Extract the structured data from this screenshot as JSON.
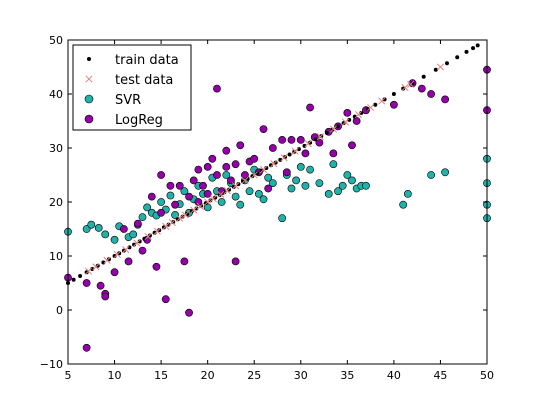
{
  "chart_data": {
    "type": "scatter",
    "title": "",
    "xlabel": "",
    "ylabel": "",
    "xlim": [
      5,
      50
    ],
    "ylim": [
      -10,
      50
    ],
    "xticks": [
      "5",
      "10",
      "15",
      "20",
      "25",
      "30",
      "35",
      "40",
      "45",
      "50"
    ],
    "yticks": [
      "−10",
      "0",
      "10",
      "20",
      "30",
      "40",
      "50"
    ],
    "grid": false,
    "legend_position": "top-left",
    "series": [
      {
        "name": "train data",
        "marker": "dot",
        "color": "#000000",
        "points": [
          [
            5.0,
            5.0
          ],
          [
            5.6,
            5.6
          ],
          [
            6.3,
            6.3
          ],
          [
            7.0,
            7.0
          ],
          [
            7.6,
            7.6
          ],
          [
            8.2,
            8.2
          ],
          [
            8.8,
            8.8
          ],
          [
            9.4,
            9.4
          ],
          [
            10.0,
            10.0
          ],
          [
            10.5,
            10.5
          ],
          [
            11.0,
            11.0
          ],
          [
            11.6,
            11.6
          ],
          [
            12.1,
            12.1
          ],
          [
            12.7,
            12.7
          ],
          [
            13.2,
            13.2
          ],
          [
            13.8,
            13.8
          ],
          [
            14.3,
            14.3
          ],
          [
            14.8,
            14.8
          ],
          [
            15.3,
            15.3
          ],
          [
            15.8,
            15.8
          ],
          [
            16.3,
            16.3
          ],
          [
            16.8,
            16.8
          ],
          [
            17.3,
            17.3
          ],
          [
            17.8,
            17.8
          ],
          [
            18.3,
            18.3
          ],
          [
            18.8,
            18.8
          ],
          [
            19.3,
            19.3
          ],
          [
            19.8,
            19.8
          ],
          [
            20.3,
            20.3
          ],
          [
            20.8,
            20.8
          ],
          [
            21.3,
            21.3
          ],
          [
            21.8,
            21.8
          ],
          [
            22.3,
            22.3
          ],
          [
            22.8,
            22.8
          ],
          [
            23.3,
            23.3
          ],
          [
            23.8,
            23.8
          ],
          [
            24.3,
            24.3
          ],
          [
            24.8,
            24.8
          ],
          [
            25.3,
            25.3
          ],
          [
            25.8,
            25.8
          ],
          [
            26.3,
            26.3
          ],
          [
            26.8,
            26.8
          ],
          [
            27.3,
            27.3
          ],
          [
            27.8,
            27.8
          ],
          [
            28.3,
            28.3
          ],
          [
            28.8,
            28.8
          ],
          [
            29.3,
            29.3
          ],
          [
            29.8,
            29.8
          ],
          [
            30.4,
            30.4
          ],
          [
            31.0,
            31.0
          ],
          [
            31.6,
            31.6
          ],
          [
            32.2,
            32.2
          ],
          [
            32.8,
            32.8
          ],
          [
            33.4,
            33.4
          ],
          [
            34.0,
            34.0
          ],
          [
            34.6,
            34.6
          ],
          [
            35.2,
            35.2
          ],
          [
            35.8,
            35.8
          ],
          [
            36.5,
            36.5
          ],
          [
            37.2,
            37.2
          ],
          [
            38.0,
            38.0
          ],
          [
            39.0,
            39.0
          ],
          [
            40.0,
            40.0
          ],
          [
            41.0,
            41.0
          ],
          [
            42.0,
            42.0
          ],
          [
            43.2,
            43.2
          ],
          [
            44.5,
            44.5
          ],
          [
            45.7,
            45.7
          ],
          [
            46.8,
            46.8
          ],
          [
            47.8,
            47.8
          ],
          [
            48.5,
            48.5
          ],
          [
            49.0,
            49.0
          ]
        ]
      },
      {
        "name": "test data",
        "marker": "x",
        "color": "#e08080",
        "points": [
          [
            7.2,
            7.2
          ],
          [
            8.0,
            8.0
          ],
          [
            9.2,
            9.2
          ],
          [
            10.3,
            10.3
          ],
          [
            11.2,
            11.2
          ],
          [
            12.4,
            12.4
          ],
          [
            13.6,
            13.6
          ],
          [
            14.6,
            14.6
          ],
          [
            15.5,
            15.5
          ],
          [
            16.2,
            16.2
          ],
          [
            17.0,
            17.0
          ],
          [
            17.6,
            17.6
          ],
          [
            18.5,
            18.5
          ],
          [
            19.2,
            19.2
          ],
          [
            20.0,
            20.0
          ],
          [
            20.6,
            20.6
          ],
          [
            21.4,
            21.4
          ],
          [
            22.1,
            22.1
          ],
          [
            23.0,
            23.0
          ],
          [
            24.0,
            24.0
          ],
          [
            25.0,
            25.0
          ],
          [
            26.0,
            26.0
          ],
          [
            27.1,
            27.1
          ],
          [
            28.2,
            28.2
          ],
          [
            29.4,
            29.4
          ],
          [
            30.8,
            30.8
          ],
          [
            32.1,
            32.1
          ],
          [
            33.5,
            33.5
          ],
          [
            34.8,
            34.8
          ],
          [
            36.2,
            36.2
          ],
          [
            37.5,
            37.5
          ],
          [
            38.7,
            38.7
          ],
          [
            41.2,
            41.2
          ],
          [
            41.8,
            41.8
          ],
          [
            45.0,
            45.0
          ]
        ]
      },
      {
        "name": "SVR",
        "marker": "circle",
        "color": "#20b2aa",
        "points": [
          [
            5.0,
            14.5
          ],
          [
            7.0,
            15.0
          ],
          [
            7.5,
            15.8
          ],
          [
            8.3,
            15.2
          ],
          [
            9.0,
            14.0
          ],
          [
            10.0,
            13.0
          ],
          [
            10.5,
            15.5
          ],
          [
            11.5,
            13.5
          ],
          [
            12.0,
            14.0
          ],
          [
            12.5,
            15.8
          ],
          [
            13.0,
            17.2
          ],
          [
            13.5,
            19.0
          ],
          [
            14.0,
            18.0
          ],
          [
            14.5,
            17.5
          ],
          [
            15.0,
            20.0
          ],
          [
            15.5,
            18.6
          ],
          [
            16.0,
            21.2
          ],
          [
            16.5,
            17.6
          ],
          [
            17.0,
            19.6
          ],
          [
            17.5,
            22.0
          ],
          [
            18.0,
            18.0
          ],
          [
            18.5,
            20.5
          ],
          [
            19.0,
            23.0
          ],
          [
            19.5,
            21.5
          ],
          [
            20.0,
            19.0
          ],
          [
            20.5,
            24.5
          ],
          [
            21.0,
            22.0
          ],
          [
            21.5,
            20.0
          ],
          [
            22.0,
            25.0
          ],
          [
            22.5,
            23.5
          ],
          [
            23.0,
            21.0
          ],
          [
            23.5,
            19.5
          ],
          [
            24.0,
            24.0
          ],
          [
            24.5,
            22.0
          ],
          [
            25.0,
            26.0
          ],
          [
            25.5,
            21.5
          ],
          [
            26.0,
            20.5
          ],
          [
            26.5,
            24.5
          ],
          [
            27.0,
            23.5
          ],
          [
            28.0,
            17.0
          ],
          [
            28.5,
            25.0
          ],
          [
            29.0,
            22.5
          ],
          [
            29.5,
            24.0
          ],
          [
            30.0,
            26.5
          ],
          [
            30.5,
            23.0
          ],
          [
            31.0,
            26.0
          ],
          [
            32.0,
            23.5
          ],
          [
            33.0,
            21.5
          ],
          [
            33.5,
            27.0
          ],
          [
            34.0,
            22.0
          ],
          [
            34.5,
            23.0
          ],
          [
            35.0,
            25.0
          ],
          [
            35.5,
            24.0
          ],
          [
            36.0,
            22.5
          ],
          [
            36.5,
            23.0
          ],
          [
            37.0,
            23.0
          ],
          [
            41.0,
            19.5
          ],
          [
            41.5,
            21.5
          ],
          [
            44.0,
            25.0
          ],
          [
            45.5,
            25.5
          ],
          [
            50.0,
            28.0
          ],
          [
            50.0,
            23.5
          ],
          [
            50.0,
            19.5
          ],
          [
            50.0,
            17.0
          ]
        ]
      },
      {
        "name": "LogReg",
        "marker": "circle",
        "color": "#9400a8",
        "points": [
          [
            5.0,
            6.0
          ],
          [
            7.0,
            5.0
          ],
          [
            7.0,
            -7.0
          ],
          [
            8.5,
            4.5
          ],
          [
            9.0,
            3.0
          ],
          [
            9.0,
            2.5
          ],
          [
            10.0,
            7.0
          ],
          [
            11.0,
            15.0
          ],
          [
            11.5,
            9.0
          ],
          [
            12.5,
            16.0
          ],
          [
            13.0,
            11.0
          ],
          [
            13.5,
            13.0
          ],
          [
            14.0,
            21.0
          ],
          [
            14.5,
            8.0
          ],
          [
            15.0,
            18.0
          ],
          [
            15.0,
            25.0
          ],
          [
            15.5,
            2.0
          ],
          [
            16.0,
            23.0
          ],
          [
            16.5,
            19.5
          ],
          [
            17.0,
            23.0
          ],
          [
            17.5,
            9.0
          ],
          [
            18.0,
            21.0
          ],
          [
            18.0,
            -0.5
          ],
          [
            18.5,
            24.0
          ],
          [
            19.0,
            20.0
          ],
          [
            19.0,
            26.0
          ],
          [
            19.5,
            23.0
          ],
          [
            20.0,
            21.5
          ],
          [
            20.0,
            26.5
          ],
          [
            20.5,
            28.0
          ],
          [
            21.0,
            25.0
          ],
          [
            21.0,
            41.0
          ],
          [
            21.5,
            22.0
          ],
          [
            22.0,
            26.5
          ],
          [
            22.0,
            29.5
          ],
          [
            22.5,
            24.0
          ],
          [
            23.0,
            9.0
          ],
          [
            23.0,
            27.0
          ],
          [
            23.5,
            30.5
          ],
          [
            24.0,
            25.0
          ],
          [
            24.5,
            27.5
          ],
          [
            25.0,
            28.0
          ],
          [
            25.5,
            25.5
          ],
          [
            26.0,
            33.5
          ],
          [
            26.5,
            22.5
          ],
          [
            27.0,
            30.0
          ],
          [
            28.0,
            31.5
          ],
          [
            28.5,
            25.5
          ],
          [
            29.0,
            31.5
          ],
          [
            30.0,
            31.5
          ],
          [
            30.5,
            29.0
          ],
          [
            31.0,
            37.5
          ],
          [
            31.5,
            32.0
          ],
          [
            32.0,
            31.0
          ],
          [
            33.0,
            33.0
          ],
          [
            33.5,
            29.0
          ],
          [
            34.0,
            34.0
          ],
          [
            35.0,
            36.5
          ],
          [
            35.5,
            30.5
          ],
          [
            36.0,
            35.0
          ],
          [
            37.0,
            37.0
          ],
          [
            40.0,
            38.0
          ],
          [
            42.0,
            42.0
          ],
          [
            43.0,
            41.0
          ],
          [
            44.0,
            40.0
          ],
          [
            45.5,
            39.0
          ],
          [
            50.0,
            44.5
          ],
          [
            50.0,
            37.0
          ]
        ]
      }
    ]
  }
}
